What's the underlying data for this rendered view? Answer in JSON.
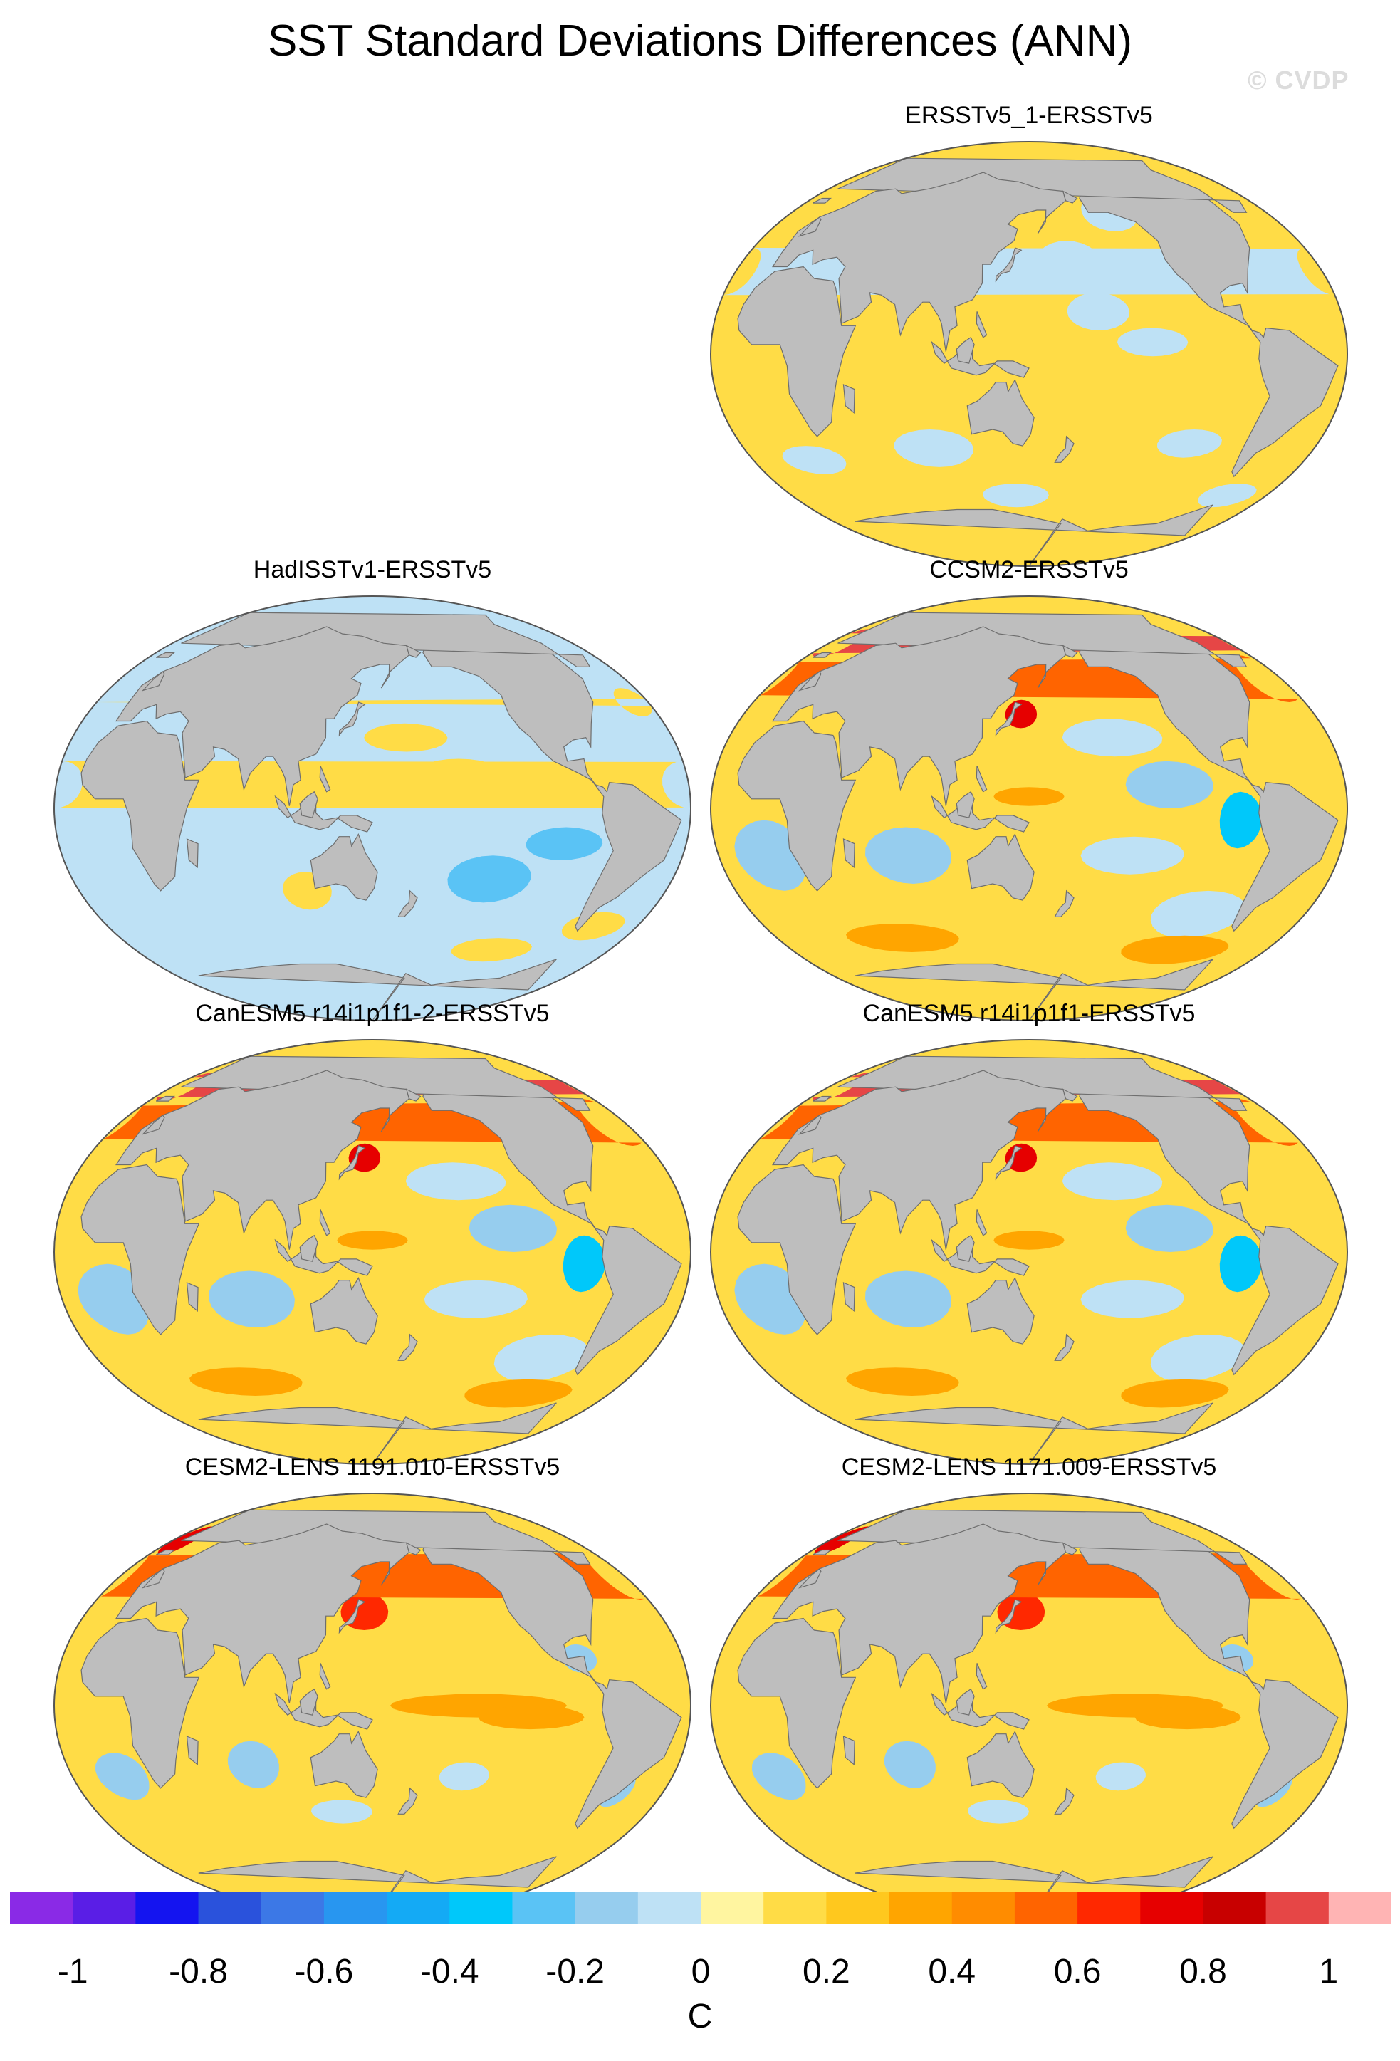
{
  "figure": {
    "title": "SST Standard Deviations Differences (ANN)",
    "watermark": "© CVDP"
  },
  "panels": [
    {
      "id": "ersst",
      "title": "ERSSTv5_1-ERSSTv5",
      "pattern": "near-zero-positive"
    },
    {
      "id": "hadisst",
      "title": "HadISSTv1-ERSSTv5",
      "pattern": "mostly-negative"
    },
    {
      "id": "ccsm2",
      "title": "CCSM2-ERSSTv5",
      "pattern": "mixed-strong-north-atlantic"
    },
    {
      "id": "canesm5a",
      "title": "CanESM5 r14i1p1f1-2-ERSSTv5",
      "pattern": "mixed-strong-north-atlantic"
    },
    {
      "id": "canesm5b",
      "title": "CanESM5 r14i1p1f1-ERSSTv5",
      "pattern": "mixed-strong-north-atlantic"
    },
    {
      "id": "cesm2a",
      "title": "CESM2-LENS 1191.010-ERSSTv5",
      "pattern": "positive-equatorial-pacific"
    },
    {
      "id": "cesm2b",
      "title": "CESM2-LENS 1171.009-ERSSTv5",
      "pattern": "positive-equatorial-pacific"
    }
  ],
  "colorbar": {
    "colors": [
      "#8a2ae6",
      "#5a1ee6",
      "#1414f0",
      "#2a52dc",
      "#3c78e6",
      "#2896f0",
      "#14aaf5",
      "#00c8fa",
      "#5ac3f5",
      "#96cdee",
      "#bee1f5",
      "#fff5a0",
      "#ffdc46",
      "#ffc81e",
      "#ffa500",
      "#ff8c00",
      "#ff6400",
      "#ff2800",
      "#e60000",
      "#c80000",
      "#e64646",
      "#ffb4b4"
    ],
    "tick_labels": [
      "-1",
      "-0.8",
      "-0.6",
      "-0.4",
      "-0.2",
      "0",
      "0.2",
      "0.4",
      "0.6",
      "0.8",
      "1"
    ],
    "tick_values": [
      -1,
      -0.8,
      -0.6,
      -0.4,
      -0.2,
      0,
      0.2,
      0.4,
      0.6,
      0.8,
      1
    ],
    "unit": "C",
    "min": -1.1,
    "max": 1.1
  },
  "colors": {
    "land": "#bebebe",
    "coastline": "#6e6e6e",
    "ocean_base": "#bee1f5"
  }
}
